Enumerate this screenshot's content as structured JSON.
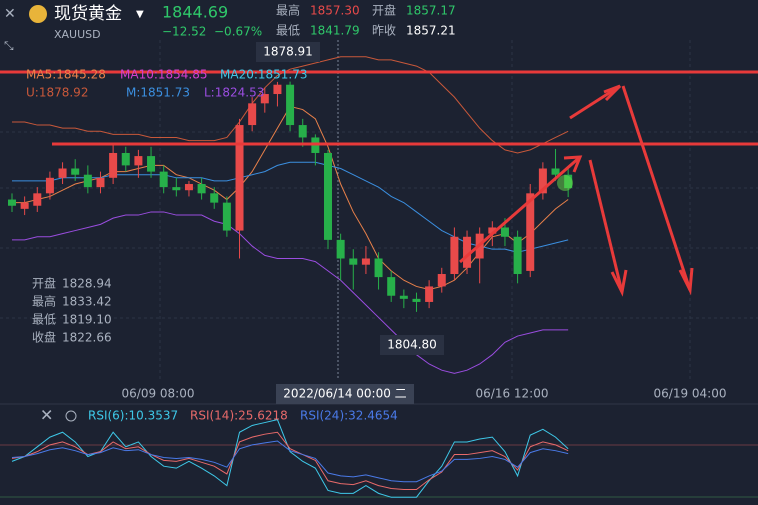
{
  "header": {
    "name": "现货黄金",
    "price": "1844.69",
    "symbol": "XAUUSD",
    "change": "−12.52",
    "change_pct": "−0.67%",
    "high_label": "最高",
    "high": "1857.30",
    "open_label": "开盘",
    "open": "1857.17",
    "low_label": "最低",
    "low": "1841.79",
    "prev_label": "昨收",
    "prev": "1857.21"
  },
  "legend": {
    "ma5": "MA5:1845.28",
    "ma10": "MA10:1854.85",
    "ma20": "MA20:1851.73",
    "u": "U:1878.92",
    "m": "M:1851.73",
    "l": "L:1824.53"
  },
  "tooltip": {
    "open_label": "开盘",
    "open": "1828.94",
    "high_label": "最高",
    "high": "1833.42",
    "low_label": "最低",
    "low": "1819.10",
    "close_label": "收盘",
    "close": "1822.66"
  },
  "rsi_legend": {
    "rsi6": "RSI(6):10.3537",
    "rsi14": "RSI(14):25.6218",
    "rsi24": "RSI(24):32.4654"
  },
  "chart_data": [
    {
      "type": "candlestick",
      "ylim": [
        1776.4,
        1905.3
      ],
      "up_color": "#e84a4a",
      "down_color": "#27b04a",
      "max_label": "1878.91",
      "min_label": "1804.80",
      "x_labels": [
        "06/09 08:00",
        "2022/06/14 00:00 二",
        "06/16 12:00",
        "06/19 04:00"
      ],
      "open": [
        1841,
        1838,
        1839,
        1843,
        1848,
        1851,
        1849,
        1845,
        1848,
        1856,
        1852,
        1855,
        1850,
        1845,
        1844,
        1846,
        1843,
        1840,
        1831,
        1865,
        1872,
        1875,
        1878,
        1865,
        1861,
        1856,
        1828,
        1822,
        1820,
        1822,
        1816,
        1810,
        1809,
        1808,
        1813,
        1817,
        1819,
        1822,
        1830,
        1832,
        1829,
        1818,
        1843,
        1851,
        1849
      ],
      "high": [
        1843,
        1842,
        1845,
        1850,
        1853,
        1854,
        1852,
        1850,
        1859,
        1858,
        1857,
        1858,
        1852,
        1848,
        1847,
        1848,
        1845,
        1842,
        1867,
        1874,
        1877,
        1878.91,
        1879,
        1867,
        1862,
        1857,
        1830,
        1825,
        1826,
        1824,
        1818,
        1812,
        1811,
        1815,
        1819,
        1832,
        1831,
        1832,
        1834,
        1835,
        1831,
        1846,
        1853,
        1857.3,
        1851
      ],
      "low": [
        1837,
        1836,
        1837,
        1841,
        1846,
        1847,
        1843,
        1843,
        1846,
        1850,
        1848,
        1848,
        1843,
        1842,
        1842,
        1841,
        1838,
        1829,
        1822,
        1863,
        1869,
        1871,
        1863,
        1858,
        1852,
        1825,
        1815,
        1812,
        1817,
        1812,
        1808,
        1806,
        1804.8,
        1806,
        1811,
        1815,
        1817,
        1814,
        1826,
        1826,
        1814,
        1816,
        1841,
        1847,
        1841.79
      ],
      "close": [
        1839,
        1840,
        1843,
        1848,
        1851,
        1849,
        1845,
        1848,
        1856,
        1852,
        1855,
        1850,
        1845,
        1844,
        1846,
        1843,
        1840,
        1831,
        1865,
        1872,
        1875,
        1878,
        1865,
        1861,
        1856,
        1828,
        1822,
        1820,
        1822,
        1816,
        1810,
        1809,
        1808,
        1813,
        1817,
        1829,
        1829,
        1830,
        1832,
        1829,
        1817,
        1843,
        1851,
        1849,
        1844.69
      ],
      "series": [
        {
          "color": "#e8804a",
          "values": [
            1840,
            1840,
            1841,
            1842,
            1844,
            1846,
            1847,
            1848,
            1850,
            1850,
            1851,
            1852,
            1852,
            1849,
            1848,
            1846,
            1844,
            1841,
            1845,
            1850,
            1857,
            1864,
            1871,
            1870,
            1867,
            1858,
            1846,
            1837,
            1830,
            1822,
            1818,
            1815,
            1813,
            1812,
            1813,
            1815,
            1819,
            1824,
            1829,
            1830,
            1827,
            1830,
            1834,
            1838,
            1841
          ]
        },
        {
          "color": "#c8583a",
          "values": [
            1866,
            1866,
            1865,
            1865,
            1864,
            1864,
            1863,
            1863,
            1862,
            1862,
            1862,
            1861,
            1861,
            1861,
            1860,
            1860,
            1860,
            1861,
            1866,
            1872,
            1877,
            1881,
            1883,
            1884,
            1885,
            1886,
            1887,
            1887,
            1887,
            1886,
            1886,
            1885,
            1884,
            1882,
            1878,
            1874,
            1869,
            1864,
            1860,
            1857,
            1856,
            1857,
            1859,
            1861,
            1863
          ]
        },
        {
          "color": "#3b8fe0",
          "values": [
            1847,
            1847,
            1847,
            1847,
            1848,
            1848,
            1848,
            1848,
            1849,
            1849,
            1849,
            1849,
            1849,
            1848,
            1848,
            1848,
            1847,
            1847,
            1848,
            1849,
            1850,
            1852,
            1853,
            1853,
            1853,
            1852,
            1851,
            1849,
            1847,
            1845,
            1842,
            1840,
            1837,
            1834,
            1831,
            1829,
            1827,
            1826,
            1825,
            1825,
            1824,
            1825,
            1826,
            1827,
            1828
          ]
        },
        {
          "color": "#9a4de0",
          "values": [
            1828,
            1828,
            1829,
            1829,
            1830,
            1831,
            1832,
            1833,
            1835,
            1836,
            1836,
            1837,
            1837,
            1836,
            1836,
            1836,
            1834,
            1833,
            1830,
            1826,
            1823,
            1822,
            1822,
            1822,
            1821,
            1818,
            1815,
            1811,
            1807,
            1803,
            1799,
            1795,
            1791,
            1788,
            1786,
            1785,
            1786,
            1788,
            1791,
            1795,
            1797,
            1798,
            1799,
            1799,
            1799
          ]
        }
      ]
    },
    {
      "type": "line",
      "ylim": [
        0,
        100
      ],
      "series": [
        {
          "color": "#3ec8e8",
          "values": [
            45,
            50,
            60,
            70,
            75,
            65,
            50,
            55,
            75,
            60,
            65,
            50,
            40,
            38,
            45,
            38,
            30,
            20,
            75,
            82,
            85,
            88,
            55,
            45,
            38,
            15,
            12,
            12,
            20,
            12,
            8,
            8,
            8,
            25,
            40,
            65,
            65,
            68,
            70,
            55,
            30,
            72,
            78,
            70,
            58
          ]
        },
        {
          "color": "#e86a6a",
          "values": [
            48,
            50,
            55,
            62,
            65,
            60,
            52,
            55,
            65,
            58,
            60,
            52,
            46,
            45,
            48,
            44,
            40,
            32,
            65,
            70,
            73,
            75,
            58,
            52,
            46,
            25,
            22,
            21,
            25,
            20,
            17,
            16,
            16,
            26,
            34,
            52,
            52,
            54,
            56,
            50,
            36,
            60,
            65,
            62,
            56
          ]
        },
        {
          "color": "#4a7ae8",
          "values": [
            49,
            50,
            53,
            57,
            59,
            56,
            52,
            54,
            59,
            56,
            57,
            52,
            49,
            48,
            49,
            47,
            44,
            39,
            58,
            62,
            64,
            66,
            56,
            52,
            48,
            33,
            30,
            29,
            31,
            28,
            25,
            24,
            24,
            30,
            35,
            47,
            47,
            48,
            50,
            47,
            39,
            54,
            58,
            56,
            53
          ]
        }
      ]
    }
  ]
}
